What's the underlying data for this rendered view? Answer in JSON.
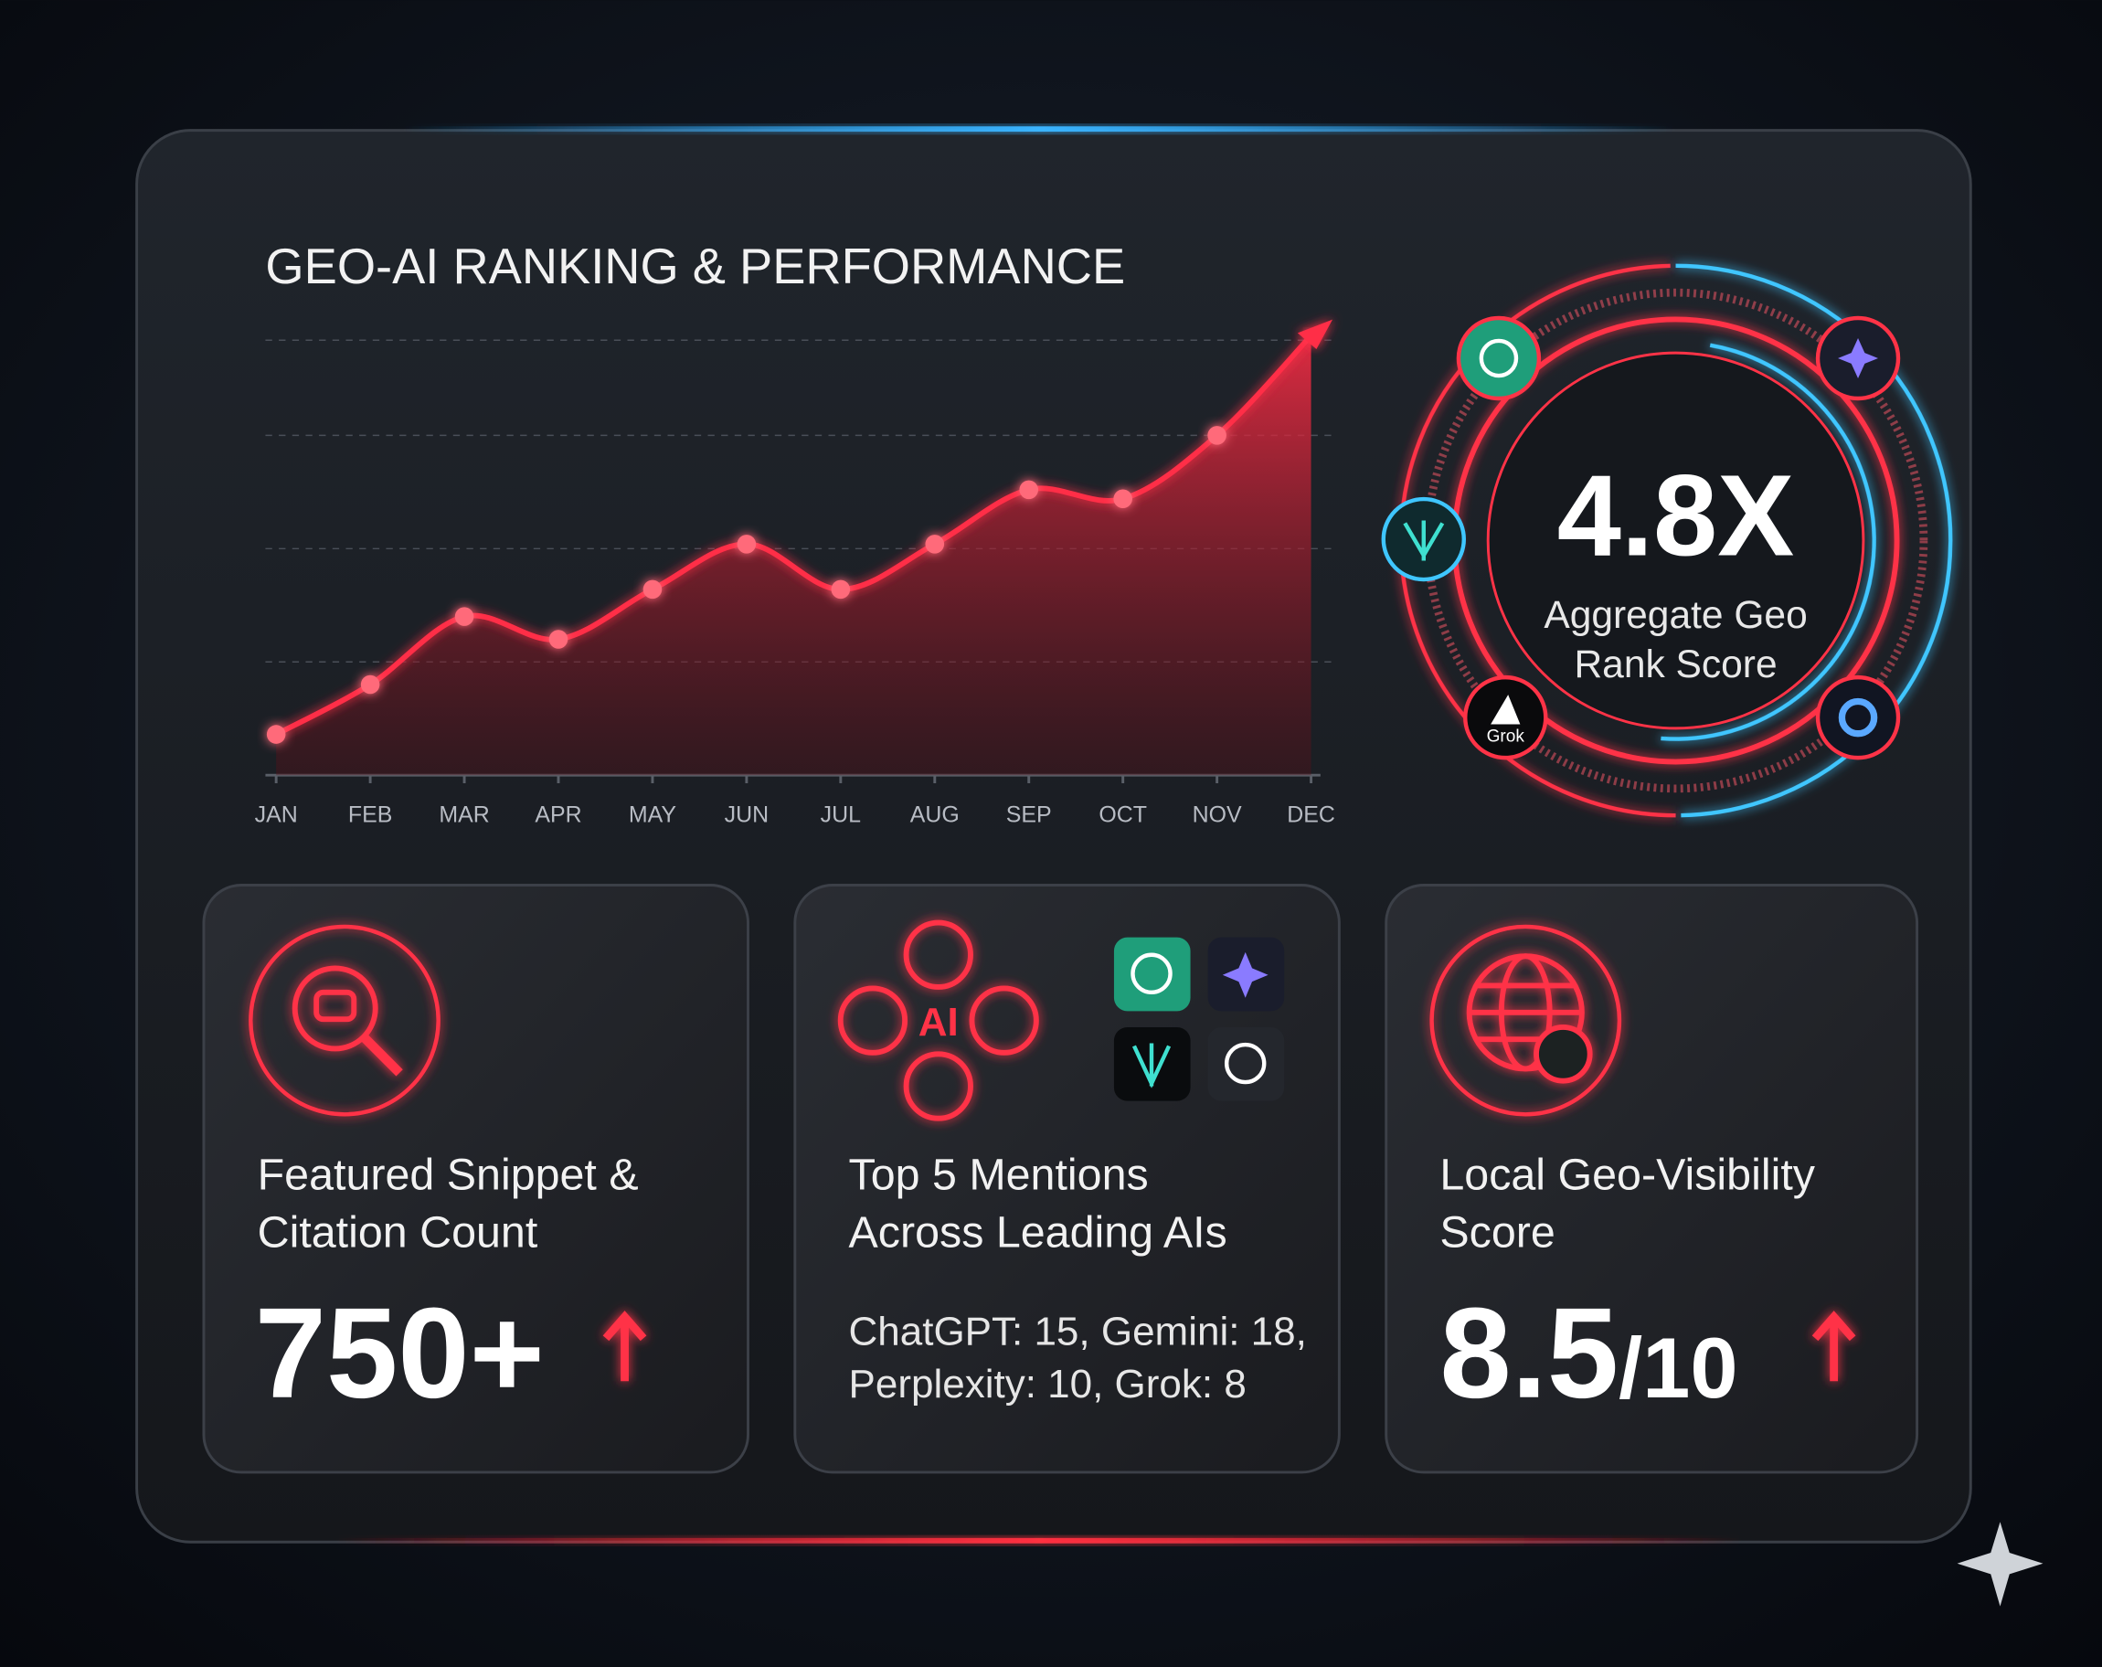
{
  "chart_data": {
    "type": "line",
    "title": "GEO-AI RANKING & PERFORMANCE",
    "categories": [
      "JAN",
      "FEB",
      "MAR",
      "APR",
      "MAY",
      "JUN",
      "JUL",
      "AUG",
      "SEP",
      "OCT",
      "NOV",
      "DEC"
    ],
    "values": [
      9,
      20,
      35,
      30,
      41,
      51,
      41,
      51,
      63,
      61,
      75,
      97
    ],
    "color": "#ff2d46",
    "ylim": [
      0,
      100
    ],
    "grid": true
  },
  "score": {
    "value": "4.8X",
    "label_lines": [
      "Aggregate Geo",
      "Rank Score"
    ],
    "logo_text": "Grok"
  },
  "cards": [
    {
      "title_lines": [
        "Featured Snippet &",
        "Citation Count"
      ],
      "value": "750+"
    },
    {
      "icon_text": "AI",
      "title_lines": [
        "Top 5 Mentions",
        "Across Leading AIs"
      ],
      "detail_lines": [
        "ChatGPT: 15, Gemini: 18,",
        "Perplexity: 10, Grok: 8"
      ]
    },
    {
      "title_lines": [
        "Local Geo-Visibility",
        "Score"
      ],
      "value": "8.5",
      "value_suffix": "/10"
    }
  ]
}
